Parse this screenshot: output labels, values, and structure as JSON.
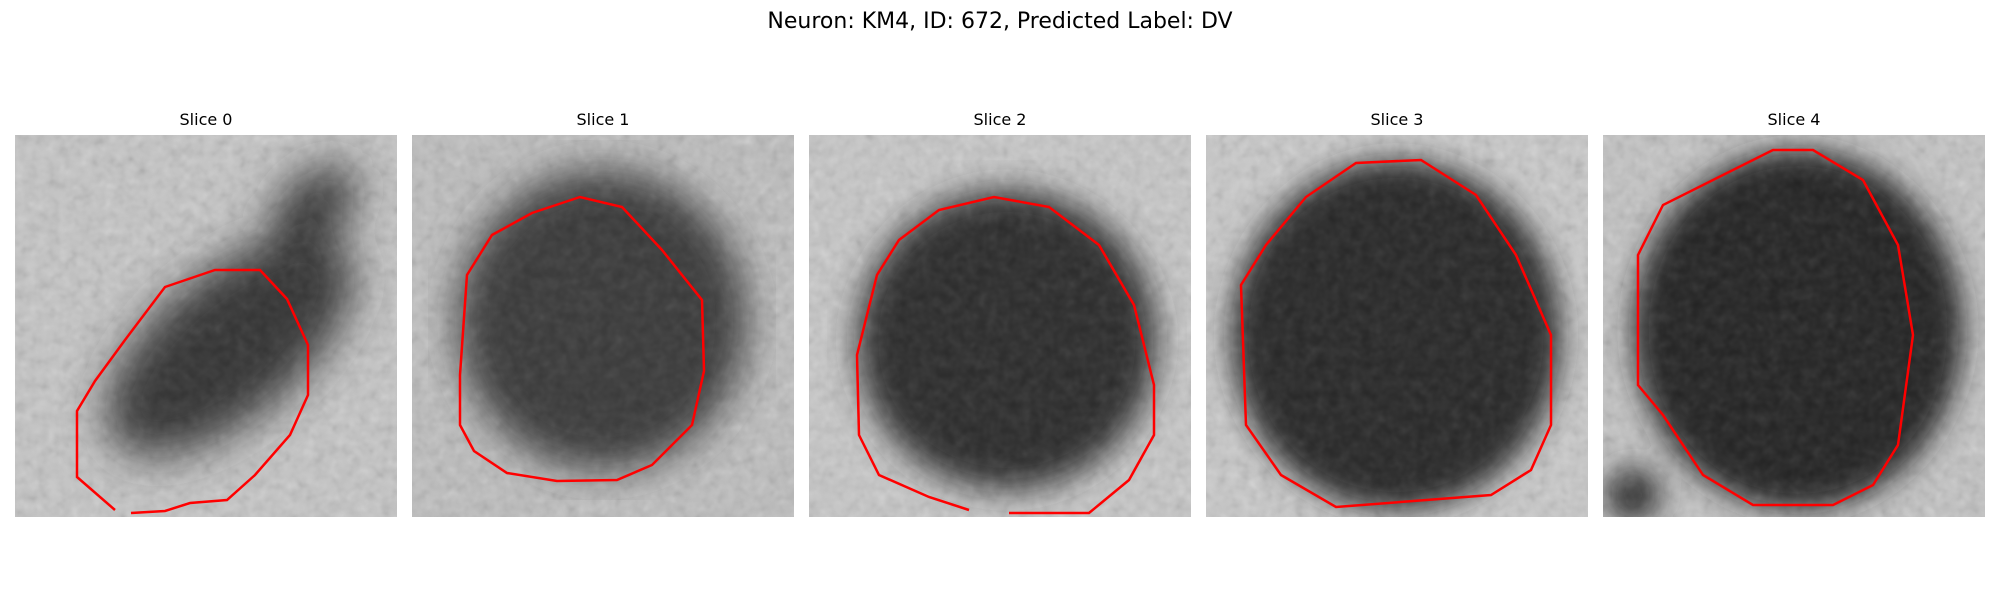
{
  "figure": {
    "title": "Neuron: KM4, ID: 672, Predicted Label: DV"
  },
  "colors": {
    "contour": "#ff0000",
    "background": "#ffffff"
  },
  "panels": [
    {
      "title": "Slice 0"
    },
    {
      "title": "Slice 1"
    },
    {
      "title": "Slice 2"
    },
    {
      "title": "Slice 3"
    },
    {
      "title": "Slice 4"
    }
  ]
}
